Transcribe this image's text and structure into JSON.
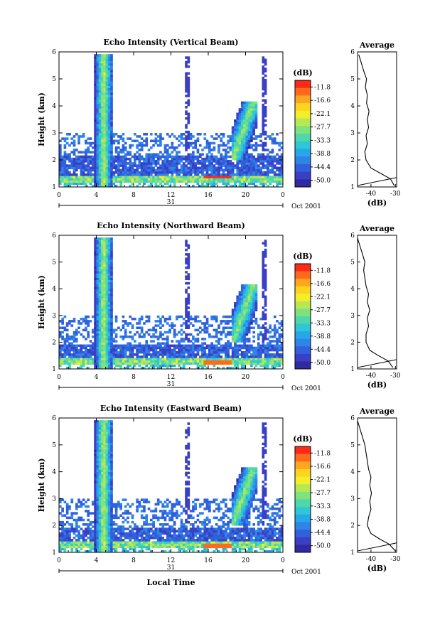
{
  "colorbar": {
    "unit": "(dB)",
    "ticks": [
      "-11.8",
      "-16.6",
      "-22.1",
      "-27.7",
      "-33.3",
      "-38.8",
      "-44.4",
      "-50.0"
    ],
    "colors": [
      "#ff2a16",
      "#ff6a1c",
      "#ffa621",
      "#ffd41e",
      "#f2ee2a",
      "#b6e854",
      "#7ee27e",
      "#4fd6ab",
      "#2ec7d6",
      "#27a6ea",
      "#2f84e8",
      "#3160db",
      "#3a40c6",
      "#2f2aa0"
    ]
  },
  "chart_data": [
    {
      "type": "heatmap",
      "title": "Echo Intensity (Vertical Beam)",
      "ylabel": "Height (km)",
      "yticks": [
        "1",
        "2",
        "3",
        "4",
        "5",
        "6"
      ],
      "xticks": [
        "0",
        "4",
        "8",
        "12",
        "16",
        "20",
        "0"
      ],
      "date_mid": "31",
      "date_label": "Oct 2001",
      "xlabel": "",
      "ylim": [
        1,
        6
      ],
      "xlim": [
        0,
        24
      ],
      "colorbar_range_db": [
        -50.0,
        -11.8
      ],
      "features": [
        {
          "name": "surface clutter layer",
          "height_km": [
            1.2,
            1.7
          ],
          "db": -28
        },
        {
          "name": "boundary layer echo",
          "height_km": [
            1.7,
            2.2
          ],
          "db": -44
        },
        {
          "name": "convective column",
          "time_h": [
            4.0,
            5.6
          ],
          "height_km": [
            1.2,
            5.9
          ],
          "db": -38
        },
        {
          "name": "cloud cluster",
          "time_h": [
            18.5,
            21.0
          ],
          "height_km": [
            2.0,
            4.2
          ],
          "db": -30
        },
        {
          "name": "strong return band",
          "time_h": [
            15.5,
            18.5
          ],
          "height_km": [
            1.25,
            1.4
          ],
          "db": -14
        }
      ],
      "average": {
        "title": "Average",
        "xlabel": "(dB)",
        "xticks": [
          "-40",
          "-30"
        ],
        "yticks": [
          "1",
          "2",
          "3",
          "4",
          "5",
          "6"
        ],
        "profile": [
          {
            "h": 1.05,
            "db": -30.5
          },
          {
            "h": 1.3,
            "db": -32
          },
          {
            "h": 1.5,
            "db": -36
          },
          {
            "h": 1.7,
            "db": -40
          },
          {
            "h": 2.0,
            "db": -42
          },
          {
            "h": 2.3,
            "db": -42.5
          },
          {
            "h": 2.6,
            "db": -41.5
          },
          {
            "h": 2.9,
            "db": -42
          },
          {
            "h": 3.2,
            "db": -41
          },
          {
            "h": 3.5,
            "db": -41.5
          },
          {
            "h": 3.8,
            "db": -40.8
          },
          {
            "h": 4.1,
            "db": -41.8
          },
          {
            "h": 4.4,
            "db": -41.5
          },
          {
            "h": 4.7,
            "db": -42.3
          },
          {
            "h": 5.0,
            "db": -41.8
          },
          {
            "h": 5.3,
            "db": -43
          },
          {
            "h": 5.6,
            "db": -44
          },
          {
            "h": 5.9,
            "db": -45
          }
        ]
      }
    },
    {
      "type": "heatmap",
      "title": "Echo Intensity (Northward Beam)",
      "ylabel": "Height (km)",
      "yticks": [
        "1",
        "2",
        "3",
        "4",
        "5",
        "6"
      ],
      "xticks": [
        "0",
        "4",
        "8",
        "12",
        "16",
        "20",
        "0"
      ],
      "date_mid": "31",
      "date_label": "Oct 2001",
      "xlabel": "",
      "ylim": [
        1,
        6
      ],
      "xlim": [
        0,
        24
      ],
      "colorbar_range_db": [
        -50.0,
        -11.8
      ],
      "features": [
        {
          "name": "surface clutter layer",
          "height_km": [
            1.2,
            1.5
          ],
          "db": -26
        },
        {
          "name": "boundary layer echo",
          "height_km": [
            1.5,
            2.0
          ],
          "db": -44
        },
        {
          "name": "convective column",
          "time_h": [
            4.0,
            5.6
          ],
          "height_km": [
            1.2,
            5.9
          ],
          "db": -36
        },
        {
          "name": "cloud cluster",
          "time_h": [
            18.5,
            21.0
          ],
          "height_km": [
            2.0,
            4.2
          ],
          "db": -29
        },
        {
          "name": "strong return band",
          "time_h": [
            15.5,
            18.5
          ],
          "height_km": [
            1.25,
            1.4
          ],
          "db": -16
        }
      ],
      "average": {
        "title": "Average",
        "xlabel": "(dB)",
        "xticks": [
          "-40",
          "-30"
        ],
        "yticks": [
          "1",
          "2",
          "3",
          "4",
          "5",
          "6"
        ],
        "profile": [
          {
            "h": 1.05,
            "db": -31
          },
          {
            "h": 1.3,
            "db": -33
          },
          {
            "h": 1.5,
            "db": -37
          },
          {
            "h": 1.7,
            "db": -40.5
          },
          {
            "h": 2.0,
            "db": -42
          },
          {
            "h": 2.3,
            "db": -42
          },
          {
            "h": 2.6,
            "db": -41
          },
          {
            "h": 2.9,
            "db": -41.5
          },
          {
            "h": 3.2,
            "db": -40.5
          },
          {
            "h": 3.5,
            "db": -41.5
          },
          {
            "h": 3.8,
            "db": -41
          },
          {
            "h": 4.1,
            "db": -42
          },
          {
            "h": 4.4,
            "db": -42.5
          },
          {
            "h": 4.7,
            "db": -43
          },
          {
            "h": 5.0,
            "db": -42.5
          },
          {
            "h": 5.3,
            "db": -43.5
          },
          {
            "h": 5.6,
            "db": -44.5
          },
          {
            "h": 5.9,
            "db": -45.5
          }
        ]
      }
    },
    {
      "type": "heatmap",
      "title": "Echo Intensity (Eastward Beam)",
      "ylabel": "Height (km)",
      "yticks": [
        "1",
        "2",
        "3",
        "4",
        "5",
        "6"
      ],
      "xticks": [
        "0",
        "4",
        "8",
        "12",
        "16",
        "20",
        "0"
      ],
      "date_mid": "31",
      "date_label": "Oct 2001",
      "xlabel": "Local Time",
      "ylim": [
        1,
        6
      ],
      "xlim": [
        0,
        24
      ],
      "colorbar_range_db": [
        -50.0,
        -11.8
      ],
      "features": [
        {
          "name": "surface clutter layer",
          "height_km": [
            1.2,
            1.5
          ],
          "db": -26
        },
        {
          "name": "boundary layer echo",
          "height_km": [
            1.5,
            2.0
          ],
          "db": -43
        },
        {
          "name": "convective column",
          "time_h": [
            4.0,
            5.6
          ],
          "height_km": [
            1.2,
            5.9
          ],
          "db": -36
        },
        {
          "name": "cloud cluster",
          "time_h": [
            18.5,
            21.0
          ],
          "height_km": [
            2.0,
            4.2
          ],
          "db": -26
        },
        {
          "name": "strong return band",
          "time_h": [
            15.5,
            18.5
          ],
          "height_km": [
            1.25,
            1.4
          ],
          "db": -15
        }
      ],
      "average": {
        "title": "Average",
        "xlabel": "(dB)",
        "xticks": [
          "-40",
          "-30"
        ],
        "yticks": [
          "1",
          "2",
          "3",
          "4",
          "5",
          "6"
        ],
        "profile": [
          {
            "h": 1.05,
            "db": -30
          },
          {
            "h": 1.3,
            "db": -32.5
          },
          {
            "h": 1.5,
            "db": -36.5
          },
          {
            "h": 1.7,
            "db": -40
          },
          {
            "h": 2.0,
            "db": -41.5
          },
          {
            "h": 2.3,
            "db": -41
          },
          {
            "h": 2.6,
            "db": -40
          },
          {
            "h": 2.9,
            "db": -40.5
          },
          {
            "h": 3.2,
            "db": -39.8
          },
          {
            "h": 3.5,
            "db": -40.5
          },
          {
            "h": 3.8,
            "db": -40
          },
          {
            "h": 4.1,
            "db": -41
          },
          {
            "h": 4.4,
            "db": -41.5
          },
          {
            "h": 4.7,
            "db": -42
          },
          {
            "h": 5.0,
            "db": -42.5
          },
          {
            "h": 5.3,
            "db": -43.5
          },
          {
            "h": 5.6,
            "db": -44.5
          },
          {
            "h": 5.9,
            "db": -45.5
          }
        ]
      }
    }
  ]
}
